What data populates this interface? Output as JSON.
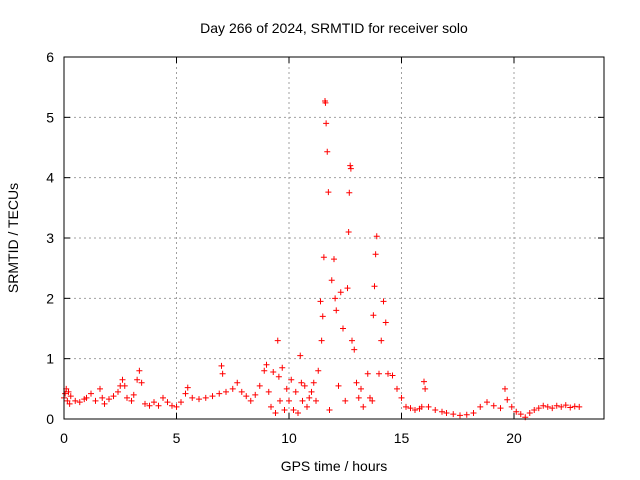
{
  "chart_data": {
    "type": "scatter",
    "title": "Day 266 of 2024, SRMTID for receiver solo",
    "xlabel": "GPS time / hours",
    "ylabel": "SRMTID / TECUs",
    "xlim": [
      0,
      24
    ],
    "ylim": [
      0,
      6
    ],
    "x_ticks": [
      "0",
      "5",
      "10",
      "15",
      "20"
    ],
    "y_ticks": [
      "0",
      "1",
      "2",
      "3",
      "4",
      "5",
      "6"
    ],
    "grid": true,
    "marker": "+",
    "color": "#ff0000",
    "series": [
      {
        "name": "SRMTID",
        "points": [
          [
            0.0,
            0.35
          ],
          [
            0.05,
            0.42
          ],
          [
            0.1,
            0.5
          ],
          [
            0.15,
            0.3
          ],
          [
            0.2,
            0.45
          ],
          [
            0.25,
            0.25
          ],
          [
            0.3,
            0.38
          ],
          [
            0.5,
            0.3
          ],
          [
            0.7,
            0.28
          ],
          [
            0.9,
            0.33
          ],
          [
            1.0,
            0.35
          ],
          [
            1.2,
            0.42
          ],
          [
            1.4,
            0.3
          ],
          [
            1.6,
            0.5
          ],
          [
            1.7,
            0.35
          ],
          [
            1.8,
            0.25
          ],
          [
            2.0,
            0.33
          ],
          [
            2.2,
            0.38
          ],
          [
            2.4,
            0.45
          ],
          [
            2.5,
            0.55
          ],
          [
            2.6,
            0.65
          ],
          [
            2.7,
            0.55
          ],
          [
            2.8,
            0.35
          ],
          [
            3.0,
            0.3
          ],
          [
            3.1,
            0.4
          ],
          [
            3.25,
            0.65
          ],
          [
            3.35,
            0.8
          ],
          [
            3.45,
            0.6
          ],
          [
            3.6,
            0.25
          ],
          [
            3.8,
            0.22
          ],
          [
            4.0,
            0.28
          ],
          [
            4.2,
            0.22
          ],
          [
            4.4,
            0.35
          ],
          [
            4.6,
            0.28
          ],
          [
            4.8,
            0.22
          ],
          [
            5.0,
            0.2
          ],
          [
            5.2,
            0.28
          ],
          [
            5.4,
            0.42
          ],
          [
            5.5,
            0.52
          ],
          [
            5.7,
            0.35
          ],
          [
            6.0,
            0.33
          ],
          [
            6.3,
            0.35
          ],
          [
            6.6,
            0.38
          ],
          [
            6.9,
            0.42
          ],
          [
            7.0,
            0.88
          ],
          [
            7.05,
            0.75
          ],
          [
            7.2,
            0.45
          ],
          [
            7.5,
            0.5
          ],
          [
            7.7,
            0.6
          ],
          [
            7.9,
            0.45
          ],
          [
            8.1,
            0.38
          ],
          [
            8.3,
            0.3
          ],
          [
            8.5,
            0.4
          ],
          [
            8.7,
            0.55
          ],
          [
            8.9,
            0.8
          ],
          [
            9.0,
            0.9
          ],
          [
            9.1,
            0.45
          ],
          [
            9.2,
            0.2
          ],
          [
            9.3,
            0.78
          ],
          [
            9.4,
            0.1
          ],
          [
            9.5,
            1.3
          ],
          [
            9.55,
            0.7
          ],
          [
            9.6,
            0.3
          ],
          [
            9.7,
            0.85
          ],
          [
            9.8,
            0.15
          ],
          [
            9.9,
            0.5
          ],
          [
            10.0,
            0.3
          ],
          [
            10.1,
            0.65
          ],
          [
            10.2,
            0.15
          ],
          [
            10.3,
            0.45
          ],
          [
            10.4,
            0.1
          ],
          [
            10.5,
            1.05
          ],
          [
            10.55,
            0.6
          ],
          [
            10.6,
            0.3
          ],
          [
            10.7,
            0.55
          ],
          [
            10.8,
            0.2
          ],
          [
            10.9,
            0.35
          ],
          [
            11.0,
            0.45
          ],
          [
            11.1,
            0.6
          ],
          [
            11.2,
            0.3
          ],
          [
            11.3,
            0.8
          ],
          [
            11.4,
            1.95
          ],
          [
            11.45,
            1.3
          ],
          [
            11.5,
            1.7
          ],
          [
            11.55,
            2.68
          ],
          [
            11.6,
            5.27
          ],
          [
            11.62,
            5.24
          ],
          [
            11.65,
            4.9
          ],
          [
            11.7,
            4.43
          ],
          [
            11.75,
            3.76
          ],
          [
            11.8,
            0.15
          ],
          [
            11.9,
            2.3
          ],
          [
            12.0,
            2.65
          ],
          [
            12.05,
            2.0
          ],
          [
            12.1,
            1.8
          ],
          [
            12.2,
            0.55
          ],
          [
            12.3,
            2.1
          ],
          [
            12.4,
            1.5
          ],
          [
            12.5,
            0.3
          ],
          [
            12.6,
            2.17
          ],
          [
            12.65,
            3.1
          ],
          [
            12.68,
            3.75
          ],
          [
            12.72,
            4.2
          ],
          [
            12.75,
            4.15
          ],
          [
            12.8,
            1.3
          ],
          [
            12.9,
            1.15
          ],
          [
            13.0,
            0.6
          ],
          [
            13.1,
            0.35
          ],
          [
            13.2,
            0.5
          ],
          [
            13.3,
            0.2
          ],
          [
            13.5,
            0.75
          ],
          [
            13.6,
            0.35
          ],
          [
            13.7,
            0.3
          ],
          [
            13.75,
            1.72
          ],
          [
            13.8,
            2.2
          ],
          [
            13.85,
            2.73
          ],
          [
            13.9,
            3.03
          ],
          [
            14.0,
            0.75
          ],
          [
            14.1,
            1.3
          ],
          [
            14.2,
            1.95
          ],
          [
            14.3,
            1.6
          ],
          [
            14.4,
            0.75
          ],
          [
            14.6,
            0.72
          ],
          [
            14.8,
            0.5
          ],
          [
            15.0,
            0.35
          ],
          [
            15.2,
            0.2
          ],
          [
            15.4,
            0.18
          ],
          [
            15.6,
            0.15
          ],
          [
            15.8,
            0.17
          ],
          [
            15.9,
            0.2
          ],
          [
            16.0,
            0.62
          ],
          [
            16.05,
            0.5
          ],
          [
            16.2,
            0.2
          ],
          [
            16.5,
            0.15
          ],
          [
            16.8,
            0.12
          ],
          [
            17.0,
            0.1
          ],
          [
            17.3,
            0.08
          ],
          [
            17.6,
            0.06
          ],
          [
            17.9,
            0.07
          ],
          [
            18.2,
            0.1
          ],
          [
            18.5,
            0.2
          ],
          [
            18.8,
            0.28
          ],
          [
            19.1,
            0.22
          ],
          [
            19.4,
            0.18
          ],
          [
            19.6,
            0.5
          ],
          [
            19.7,
            0.32
          ],
          [
            19.9,
            0.2
          ],
          [
            20.1,
            0.12
          ],
          [
            20.3,
            0.08
          ],
          [
            20.5,
            0.03
          ],
          [
            20.7,
            0.1
          ],
          [
            20.9,
            0.15
          ],
          [
            21.1,
            0.18
          ],
          [
            21.3,
            0.22
          ],
          [
            21.5,
            0.2
          ],
          [
            21.7,
            0.18
          ],
          [
            21.9,
            0.22
          ],
          [
            22.1,
            0.2
          ],
          [
            22.3,
            0.23
          ],
          [
            22.5,
            0.19
          ],
          [
            22.7,
            0.21
          ],
          [
            22.9,
            0.2
          ]
        ]
      }
    ]
  }
}
